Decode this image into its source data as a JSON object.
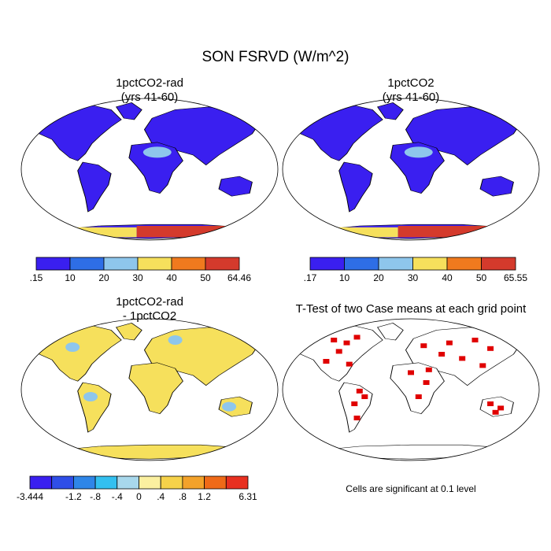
{
  "title": "SON FSRVD (W/m^2)",
  "panels": [
    {
      "id": "p1",
      "title_line1": "1pctCO2-rad",
      "title_line2": "(yrs 41-60)",
      "type": "map"
    },
    {
      "id": "p2",
      "title_line1": "1pctCO2",
      "title_line2": "(yrs 41-60)",
      "type": "map"
    },
    {
      "id": "p3",
      "title_line1": "1pctCO2-rad",
      "title_line2": "- 1pctCO2",
      "type": "map-difference"
    },
    {
      "id": "p4",
      "title_line1": "T-Test of two Case means at each grid point",
      "title_line2": "",
      "type": "significance-map"
    }
  ],
  "note": "Cells are significant at 0.1 level",
  "chart_data": [
    {
      "type": "heatmap",
      "panel": "p1",
      "colorbar": {
        "bins": [
          ".15",
          "10",
          "20",
          "30",
          "40",
          "50",
          "64.46"
        ],
        "colors": [
          "#3a1ff0",
          "#2e6ee6",
          "#8ec6ec",
          "#f6e05c",
          "#f07a1e",
          "#d43a2c"
        ],
        "min": 0.15,
        "max": 64.46
      }
    },
    {
      "type": "heatmap",
      "panel": "p2",
      "colorbar": {
        "bins": [
          ".17",
          "10",
          "20",
          "30",
          "40",
          "50",
          "65.55"
        ],
        "colors": [
          "#3a1ff0",
          "#2e6ee6",
          "#8ec6ec",
          "#f6e05c",
          "#f07a1e",
          "#d43a2c"
        ],
        "min": 0.17,
        "max": 65.55
      }
    },
    {
      "type": "heatmap",
      "panel": "p3",
      "colorbar": {
        "bins": [
          "-3.444",
          "",
          "-1.2",
          "-.8",
          "-.4",
          "0",
          ".4",
          ".8",
          "1.2",
          "",
          "6.31"
        ],
        "colors": [
          "#3a1ff0",
          "#2f4ee8",
          "#2f86e8",
          "#33c0f0",
          "#a8d8ec",
          "#fbf0a0",
          "#f6d24a",
          "#f3a22a",
          "#ef6a18",
          "#e83020"
        ],
        "min": -3.444,
        "max": 6.31
      }
    },
    {
      "type": "heatmap",
      "panel": "p4",
      "significance_level": 0.1,
      "significant_color": "#e00000"
    }
  ]
}
